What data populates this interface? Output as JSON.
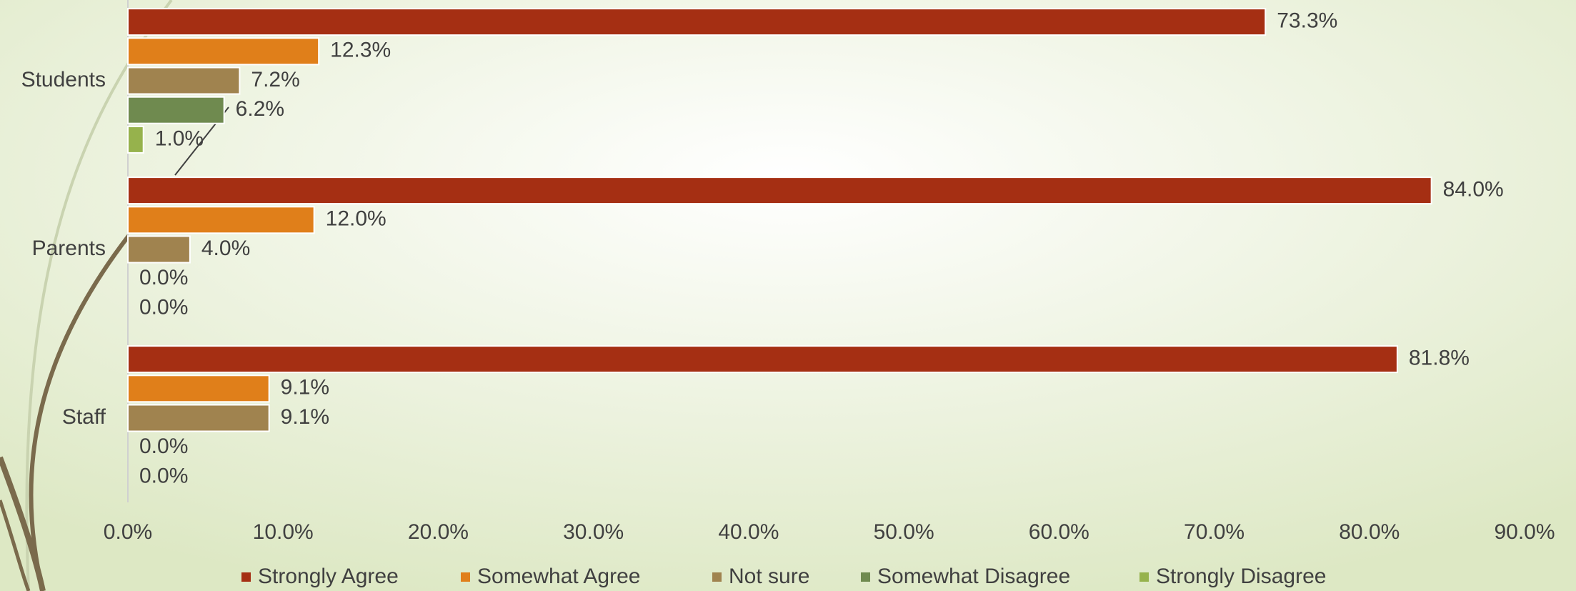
{
  "chart_data": {
    "type": "bar",
    "orientation": "horizontal",
    "categories": [
      "Students",
      "Parents",
      "Staff"
    ],
    "series": [
      {
        "name": "Strongly Agree",
        "color": "#a52f13",
        "values": [
          73.3,
          84.0,
          81.8
        ],
        "value_labels": [
          "73.3%",
          "84.0%",
          "81.8%"
        ]
      },
      {
        "name": "Somewhat Agree",
        "color": "#e07f1a",
        "values": [
          12.3,
          12.0,
          9.1
        ],
        "value_labels": [
          "12.3%",
          "12.0%",
          "9.1%"
        ]
      },
      {
        "name": "Not sure",
        "color": "#a0834f",
        "values": [
          7.2,
          4.0,
          9.1
        ],
        "value_labels": [
          "7.2%",
          "4.0%",
          "9.1%"
        ]
      },
      {
        "name": "Somewhat Disagree",
        "color": "#6f8a4f",
        "values": [
          6.2,
          0.0,
          0.0
        ],
        "value_labels": [
          "6.2%",
          "0.0%",
          "0.0%"
        ]
      },
      {
        "name": "Strongly Disagree",
        "color": "#96b24c",
        "values": [
          1.0,
          0.0,
          0.0
        ],
        "value_labels": [
          "1.0%",
          "0.0%",
          "0.0%"
        ]
      }
    ],
    "xlim": [
      0,
      90
    ],
    "xticks": [
      {
        "value": 0,
        "label": "0.0%"
      },
      {
        "value": 10,
        "label": "10.0%"
      },
      {
        "value": 20,
        "label": "20.0%"
      },
      {
        "value": 30,
        "label": "30.0%"
      },
      {
        "value": 40,
        "label": "40.0%"
      },
      {
        "value": 50,
        "label": "50.0%"
      },
      {
        "value": 60,
        "label": "60.0%"
      },
      {
        "value": 70,
        "label": "70.0%"
      },
      {
        "value": 80,
        "label": "80.0%"
      },
      {
        "value": 90,
        "label": "90.0%"
      }
    ],
    "legend": "bottom"
  }
}
